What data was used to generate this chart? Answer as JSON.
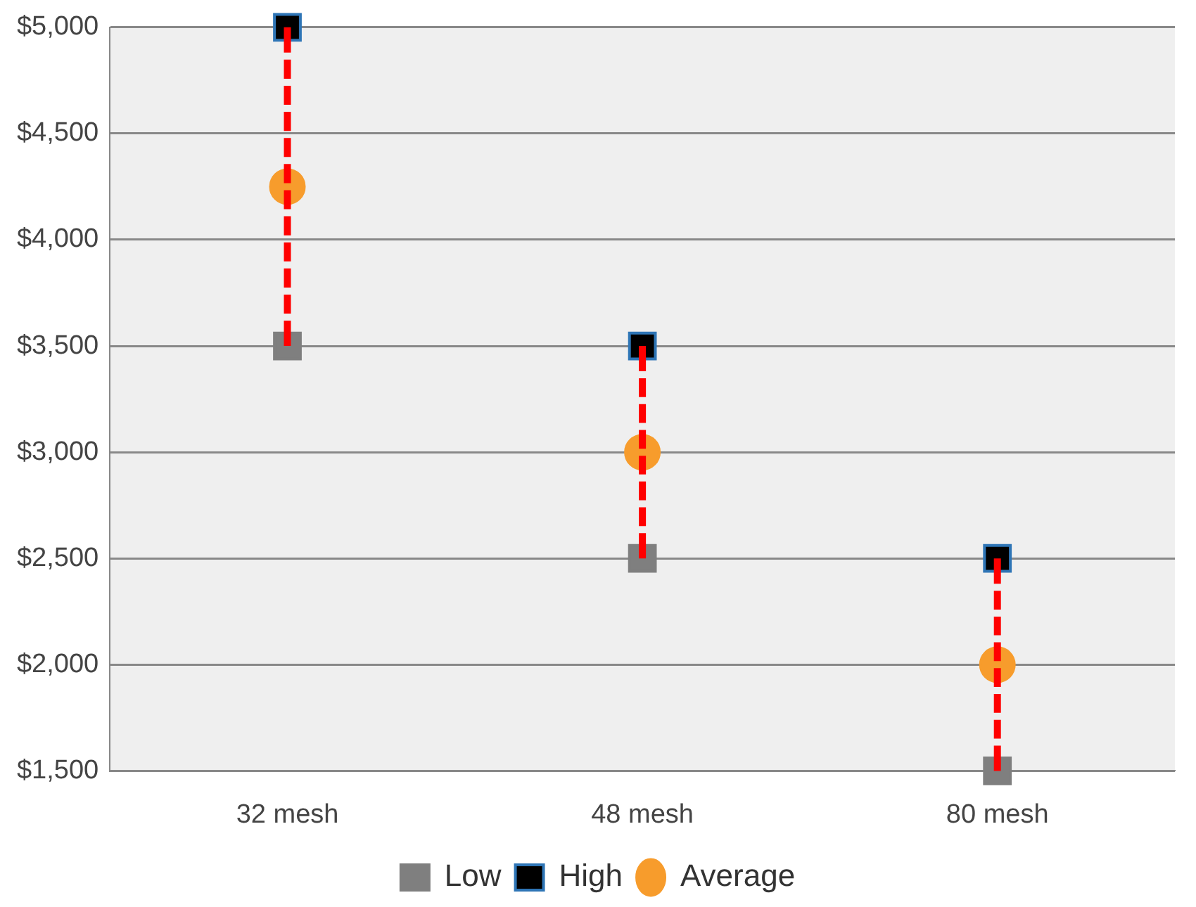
{
  "chart_data": {
    "type": "scatter",
    "categories": [
      "32 mesh",
      "48 mesh",
      "80 mesh"
    ],
    "series": [
      {
        "name": "Low",
        "color": "#7f7f7f",
        "marker": "square",
        "values": [
          3500,
          2500,
          1500
        ]
      },
      {
        "name": "High",
        "color": "#000000",
        "marker": "square",
        "values": [
          5000,
          3500,
          2500
        ]
      },
      {
        "name": "Average",
        "color": "#f79c2c",
        "marker": "circle",
        "values": [
          4250,
          3000,
          2000
        ],
        "errors": [
          750,
          500,
          500
        ]
      }
    ],
    "ylim": [
      1500,
      5000
    ],
    "yticks": [
      {
        "value": 1500,
        "label": "$1,500"
      },
      {
        "value": 2000,
        "label": "$2,000"
      },
      {
        "value": 2500,
        "label": "$2,500"
      },
      {
        "value": 3000,
        "label": "$3,000"
      },
      {
        "value": 3500,
        "label": "$3,500"
      },
      {
        "value": 4000,
        "label": "$4,000"
      },
      {
        "value": 4500,
        "label": "$4,500"
      },
      {
        "value": 5000,
        "label": "$5,000"
      }
    ],
    "grid": "y",
    "legend": "bottom"
  }
}
